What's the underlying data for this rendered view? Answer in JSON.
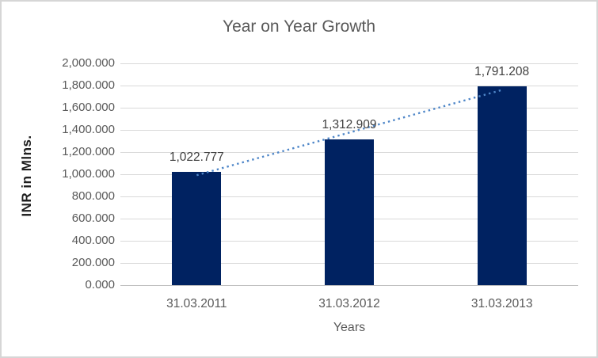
{
  "chart_data": {
    "type": "bar",
    "title": "Year on Year Growth",
    "xlabel": "Years",
    "ylabel": "INR in Mlns.",
    "categories": [
      "31.03.2011",
      "31.03.2012",
      "31.03.2013"
    ],
    "values": [
      1022.777,
      1312.909,
      1791.208
    ],
    "data_labels": [
      "1,022.777",
      "1,312.909",
      "1,791.208"
    ],
    "ylim": [
      0,
      2000
    ],
    "ytick_labels": [
      "0.000",
      "200.000",
      "400.000",
      "600.000",
      "800.000",
      "1,000.000",
      "1,200.000",
      "1,400.000",
      "1,600.000",
      "1,800.000",
      "2,000.000"
    ],
    "grid": true,
    "legend": false,
    "trendline": {
      "type": "linear",
      "style": "dotted"
    },
    "colors": {
      "bar": "#002261",
      "trendline": "#4e86c8",
      "gridline": "#d9d9d9",
      "axis_line": "#bfbfbf",
      "title_text": "#595959",
      "tick_text": "#595959",
      "data_label_text": "#3f3f3f",
      "y_axis_title_text": "#1f1f1f",
      "frame_border": "#d6d6d6"
    }
  }
}
